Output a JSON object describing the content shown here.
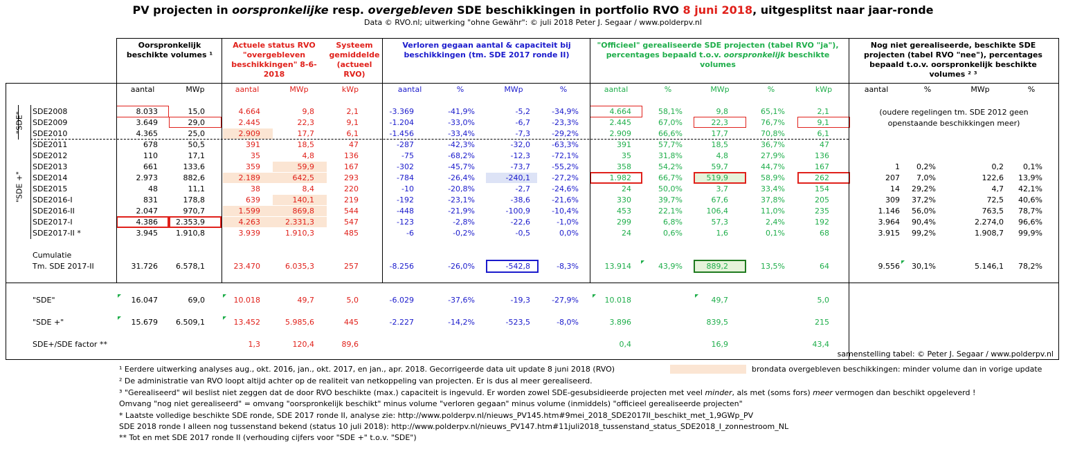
{
  "title": {
    "p1": "PV projecten in ",
    "p2": "oorspronkelijke",
    "p3": " resp. ",
    "p4": "overgebleven",
    "p5": " SDE beschikkingen in portfolio RVO ",
    "date": "8 juni 2018",
    "p6": ", uitgesplitst naar jaar-ronde"
  },
  "subtitle": "Data © RVO.nl; uitwerking \"ohne Gewähr\": © juli 2018 Peter J. Segaar / www.polderpv.nl",
  "headers": {
    "orig": "Oorspronkelijk beschikte volumes ¹",
    "actual": "Actuele status RVO \"overgebleven beschikkingen\" 8-6-2018",
    "system": "Systeem gemiddelde (actueel RVO)",
    "lost": "Verloren gegaan aantal & capaciteit bij beschikkingen (tm. SDE 2017 ronde II)",
    "official_1": "\"Officieel\" gerealiseerde SDE projecten (tabel RVO \"ja\"), percentages bepaald t.o.v. ",
    "official_2": "oorspronkelijk",
    "official_3": " beschikte volumes",
    "notreal": "Nog niet gerealiseerde, beschikte SDE projecten (tabel RVO \"nee\"), percentages bepaald t.o.v. oorspronkelijk beschikte volumes ² ³"
  },
  "subheaders": {
    "aantal": "aantal",
    "mwp": "MWp",
    "kwp": "kWp",
    "pct": "%"
  },
  "group_labels": {
    "sde": "\"SDE\"",
    "sdeplus": "\"SDE +\""
  },
  "rows": [
    {
      "name": "SDE2008",
      "c": [
        "8.033",
        "15,0",
        "4.664",
        "9,8",
        "2,1",
        "-3.369",
        "-41,9%",
        "-5,2",
        "-34,9%",
        "4.664",
        "58,1%",
        "9,8",
        "65,1%",
        "2,1",
        "",
        "",
        "",
        ""
      ]
    },
    {
      "name": "SDE2009",
      "c": [
        "3.649",
        "29,0",
        "2.445",
        "22,3",
        "9,1",
        "-1.204",
        "-33,0%",
        "-6,7",
        "-23,3%",
        "2.445",
        "67,0%",
        "22,3",
        "76,7%",
        "9,1",
        "",
        "",
        "",
        ""
      ]
    },
    {
      "name": "SDE2010",
      "c": [
        "4.365",
        "25,0",
        "2.909",
        "17,7",
        "6,1",
        "-1.456",
        "-33,4%",
        "-7,3",
        "-29,2%",
        "2.909",
        "66,6%",
        "17,7",
        "70,8%",
        "6,1",
        "",
        "",
        "",
        ""
      ]
    },
    {
      "name": "SDE2011",
      "c": [
        "678",
        "50,5",
        "391",
        "18,5",
        "47",
        "-287",
        "-42,3%",
        "-32,0",
        "-63,3%",
        "391",
        "57,7%",
        "18,5",
        "36,7%",
        "47",
        "",
        "",
        "",
        ""
      ]
    },
    {
      "name": "SDE2012",
      "c": [
        "110",
        "17,1",
        "35",
        "4,8",
        "136",
        "-75",
        "-68,2%",
        "-12,3",
        "-72,1%",
        "35",
        "31,8%",
        "4,8",
        "27,9%",
        "136",
        "",
        "",
        "",
        ""
      ]
    },
    {
      "name": "SDE2013",
      "c": [
        "661",
        "133,6",
        "359",
        "59,9",
        "167",
        "-302",
        "-45,7%",
        "-73,7",
        "-55,2%",
        "358",
        "54,2%",
        "59,7",
        "44,7%",
        "167",
        "1",
        "0,2%",
        "0,2",
        "0,1%"
      ]
    },
    {
      "name": "SDE2014",
      "c": [
        "2.973",
        "882,6",
        "2.189",
        "642,5",
        "293",
        "-784",
        "-26,4%",
        "-240,1",
        "-27,2%",
        "1.982",
        "66,7%",
        "519,9",
        "58,9%",
        "262",
        "207",
        "7,0%",
        "122,6",
        "13,9%"
      ]
    },
    {
      "name": "SDE2015",
      "c": [
        "48",
        "11,1",
        "38",
        "8,4",
        "220",
        "-10",
        "-20,8%",
        "-2,7",
        "-24,6%",
        "24",
        "50,0%",
        "3,7",
        "33,4%",
        "154",
        "14",
        "29,2%",
        "4,7",
        "42,1%"
      ]
    },
    {
      "name": "SDE2016-I",
      "c": [
        "831",
        "178,8",
        "639",
        "140,1",
        "219",
        "-192",
        "-23,1%",
        "-38,6",
        "-21,6%",
        "330",
        "39,7%",
        "67,6",
        "37,8%",
        "205",
        "309",
        "37,2%",
        "72,5",
        "40,6%"
      ]
    },
    {
      "name": "SDE2016-II",
      "c": [
        "2.047",
        "970,7",
        "1.599",
        "869,8",
        "544",
        "-448",
        "-21,9%",
        "-100,9",
        "-10,4%",
        "453",
        "22,1%",
        "106,4",
        "11,0%",
        "235",
        "1.146",
        "56,0%",
        "763,5",
        "78,7%"
      ]
    },
    {
      "name": "SDE2017-I",
      "c": [
        "4.386",
        "2.353,9",
        "4.263",
        "2.331,3",
        "547",
        "-123",
        "-2,8%",
        "-22,6",
        "-1,0%",
        "299",
        "6,8%",
        "57,3",
        "2,4%",
        "192",
        "3.964",
        "90,4%",
        "2.274,0",
        "96,6%"
      ]
    },
    {
      "name": "SDE2017-II *",
      "c": [
        "3.945",
        "1.910,8",
        "3.939",
        "1.910,3",
        "485",
        "-6",
        "-0,2%",
        "-0,5",
        "0,0%",
        "24",
        "0,6%",
        "1,6",
        "0,1%",
        "68",
        "3.915",
        "99,2%",
        "1.908,7",
        "99,9%"
      ]
    }
  ],
  "old_note": "(oudere regelingen tm. SDE 2012 geen openstaande beschikkingen meer)",
  "cumulatie": {
    "label1": "Cumulatie",
    "label2": "Tm. SDE 2017-II",
    "c": [
      "31.726",
      "6.578,1",
      "23.470",
      "6.035,3",
      "257",
      "-8.256",
      "-26,0%",
      "-542,8",
      "-8,3%",
      "13.914",
      "43,9%",
      "889,2",
      "13,5%",
      "64",
      "9.556",
      "30,1%",
      "5.146,1",
      "78,2%"
    ]
  },
  "summary": [
    {
      "name": "\"SDE\"",
      "c": [
        "16.047",
        "69,0",
        "10.018",
        "49,7",
        "5,0",
        "-6.029",
        "-37,6%",
        "-19,3",
        "-27,9%",
        "10.018",
        "",
        "49,7",
        "",
        "5,0",
        "",
        "",
        "",
        ""
      ]
    },
    {
      "name": "\"SDE +\"",
      "c": [
        "15.679",
        "6.509,1",
        "13.452",
        "5.985,6",
        "445",
        "-2.227",
        "-14,2%",
        "-523,5",
        "-8,0%",
        "3.896",
        "",
        "839,5",
        "",
        "215",
        "",
        "",
        "",
        ""
      ]
    },
    {
      "name": "SDE+/SDE factor **",
      "c": [
        "",
        "",
        "1,3",
        "120,4",
        "89,6",
        "",
        "",
        "",
        "",
        "0,4",
        "",
        "16,9",
        "",
        "43,4",
        "",
        "",
        "",
        ""
      ]
    }
  ],
  "credit": "samenstelling tabel: © Peter J. Segaar / www.polderpv.nl",
  "legend_text": "brondata overgebleven beschikkingen: minder volume dan in vorige update",
  "footnotes": {
    "f1": "¹ Eerdere uitwerking analyses aug., okt. 2016, jan., okt.  2017, en jan., apr. 2018. Gecorrigeerde data uit update 8 juni 2018 (RVO)",
    "f2": "² De administratie van RVO loopt altijd achter op de realiteit van netkoppeling van projecten. Er is dus al meer gerealiseerd.",
    "f3a": "³ \"Gerealiseerd\" wil beslist niet zeggen dat de door RVO beschikte (max.) capaciteit is ingevuld. Er worden zowel SDE-gesubsidieerde projecten met veel ",
    "f3b": "minder",
    "f3c": ",  als met (soms fors) ",
    "f3d": "meer",
    "f3e": "  vermogen dan beschikt opgeleverd !",
    "f4": "Omvang \"nog niet gerealiseerd\" = omvang \"oorspronkelijk beschikt\" minus volume \"verloren gegaan\" minus volume (inmiddels) \"officieel gerealiseerde projecten\"",
    "f5": "* Laatste volledige beschikte SDE ronde, SDE 2017 ronde II, analyse zie: http://www.polderpv.nl/nieuws_PV145.htm#9mei_2018_SDE2017II_beschikt_met_1,9GWp_PV",
    "f6": "SDE 2018 ronde I alleen nog tussenstand bekend (status 10 juli 2018): http://www.polderpv.nl/nieuws_PV147.htm#11juli2018_tussenstand_status_SDE2018_I_zonnestroom_NL",
    "f7": "** Tot en met SDE 2017 ronde II (verhouding cijfers voor \"SDE +\" t.o.v. \"SDE\")"
  },
  "colors": {
    "red": "#e0201a",
    "blue": "#1a1acc",
    "green": "#1fae4b",
    "peach": "#fbe5d3"
  }
}
